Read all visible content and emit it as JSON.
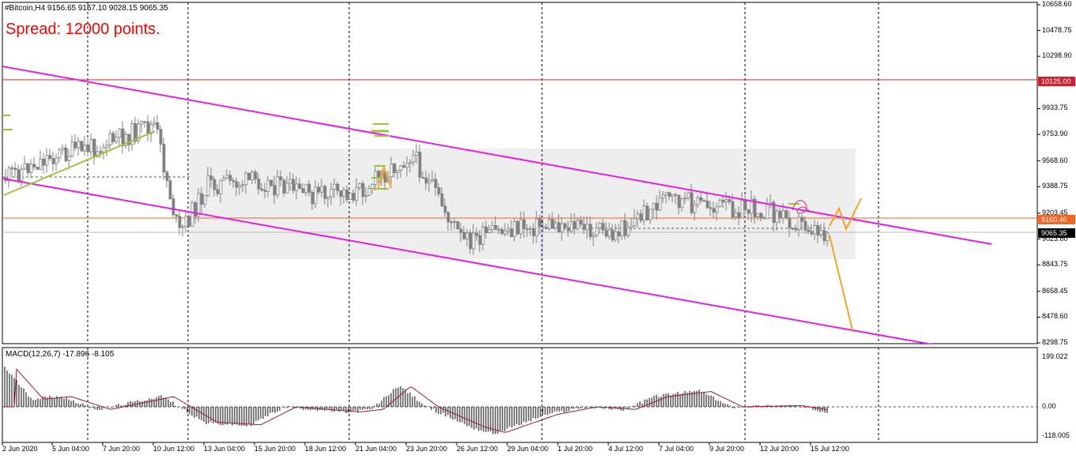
{
  "window": {
    "title": "#Bitcoin,H4  9156.65 9157.10 9028.15 9065.35",
    "symbol": "#Bitcoin",
    "timeframe": "H4"
  },
  "annotation": {
    "spread_text": "Spread: 12000 points."
  },
  "price_axis": {
    "ticks": [
      "10658.60",
      "10478.75",
      "10298.90",
      "9933.75",
      "9753.90",
      "9568.60",
      "9388.75",
      "9203.45",
      "9023.60",
      "8843.75",
      "8658.45",
      "8478.60",
      "8298.75"
    ],
    "badges": [
      {
        "text": "10125.00",
        "value": 10125.0,
        "color": "#d41f2b",
        "text_color": "#ffffff"
      },
      {
        "text": "9160.46",
        "value": 9160.46,
        "color": "#f26522",
        "text_color": "#ffffff"
      },
      {
        "text": "9065.35",
        "value": 9065.35,
        "color": "#000000",
        "text_color": "#ffffff"
      }
    ]
  },
  "macd_axis": {
    "ticks": [
      "199.022",
      "0.00",
      "-118.005"
    ]
  },
  "macd_title": "MACD(12,26,7) -17.896 -8.105",
  "time_axis": {
    "labels": [
      "2 Jun 2020",
      "5 Jun 04:00",
      "7 Jun 20:00",
      "10 Jun 12:00",
      "13 Jun 04:00",
      "15 Jun 20:00",
      "18 Jun 12:00",
      "21 Jun 04:00",
      "23 Jun 20:00",
      "26 Jun 12:00",
      "29 Jun 04:00",
      "1 Jul 20:00",
      "4 Jul 12:00",
      "7 Jul 04:00",
      "9 Jul 20:00",
      "12 Jul 20:00",
      "15 Jul 12:00"
    ]
  },
  "colors": {
    "candle": "#808080",
    "channel": "#e81ee8",
    "resistance": "#d41f2b",
    "current_level": "#f26522",
    "forecast": "#f7a325",
    "green_trend": "#9ac53a",
    "box": "#eeeeee"
  },
  "chart_data": {
    "type": "candlestick",
    "symbol": "#Bitcoin",
    "timeframe": "H4",
    "last_bar": {
      "open": 9156.65,
      "high": 9157.1,
      "low": 9028.15,
      "close": 9065.35
    },
    "price_range": [
      8298.75,
      10658.6
    ],
    "horizontal_levels": [
      10125.0,
      9160.46,
      9065.35
    ],
    "approx_path": [
      {
        "time": "2 Jun 2020",
        "price": 9450
      },
      {
        "time": "5 Jun 04:00",
        "price": 9600
      },
      {
        "time": "7 Jun 20:00",
        "price": 9680
      },
      {
        "time": "10 Jun 12:00",
        "price": 9820
      },
      {
        "time": "11 Jun 00:00",
        "price": 9050
      },
      {
        "time": "13 Jun 04:00",
        "price": 9400
      },
      {
        "time": "15 Jun 20:00",
        "price": 9430
      },
      {
        "time": "18 Jun 12:00",
        "price": 9330
      },
      {
        "time": "21 Jun 04:00",
        "price": 9350
      },
      {
        "time": "23 Jun 20:00",
        "price": 9620
      },
      {
        "time": "26 Jun 12:00",
        "price": 9000
      },
      {
        "time": "29 Jun 04:00",
        "price": 9100
      },
      {
        "time": "1 Jul 20:00",
        "price": 9130
      },
      {
        "time": "4 Jul 12:00",
        "price": 9050
      },
      {
        "time": "7 Jul 04:00",
        "price": 9300
      },
      {
        "time": "9 Jul 20:00",
        "price": 9250
      },
      {
        "time": "12 Jul 20:00",
        "price": 9230
      },
      {
        "time": "15 Jul 12:00",
        "price": 9065
      }
    ],
    "macd": {
      "params": "12,26,7",
      "main": -17.896,
      "signal": -8.105,
      "range": [
        -118.005,
        199.022
      ]
    }
  }
}
